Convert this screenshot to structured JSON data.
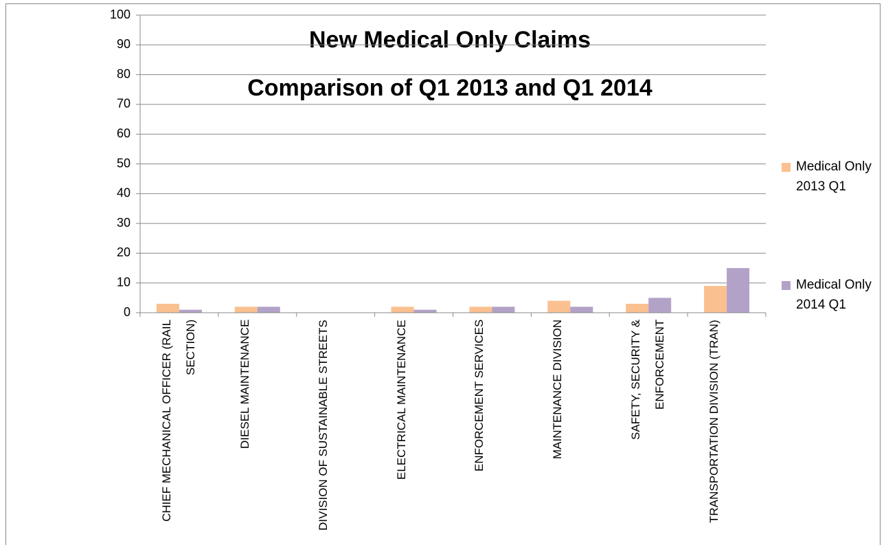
{
  "chart_data": {
    "type": "bar",
    "title": "New Medical Only Claims",
    "subtitle": "Comparison of Q1 2013 and Q1 2014",
    "categories": [
      "CHIEF MECHANICAL OFFICER (RAIL SECTION)",
      "DIESEL MAINTENANCE",
      "DIVISION OF SUSTAINABLE STREETS",
      "ELECTRICAL MAINTENANCE",
      "ENFORCEMENT SERVICES",
      "MAINTENANCE DIVISION",
      "SAFETY, SECURITY & ENFORCEMENT",
      "TRANSPORTATION DIVISION (TRAN)"
    ],
    "series": [
      {
        "name": "Medical Only 2013 Q1",
        "color": "#fac090",
        "values": [
          3,
          2,
          0,
          2,
          2,
          4,
          3,
          9
        ]
      },
      {
        "name": "Medical Only 2014 Q1",
        "color": "#b3a2c7",
        "values": [
          1,
          2,
          0,
          1,
          2,
          2,
          5,
          15
        ]
      }
    ],
    "ylim": [
      0,
      100
    ],
    "yticks": [
      0,
      10,
      20,
      30,
      40,
      50,
      60,
      70,
      80,
      90,
      100
    ],
    "grid": true,
    "legend": "right"
  }
}
